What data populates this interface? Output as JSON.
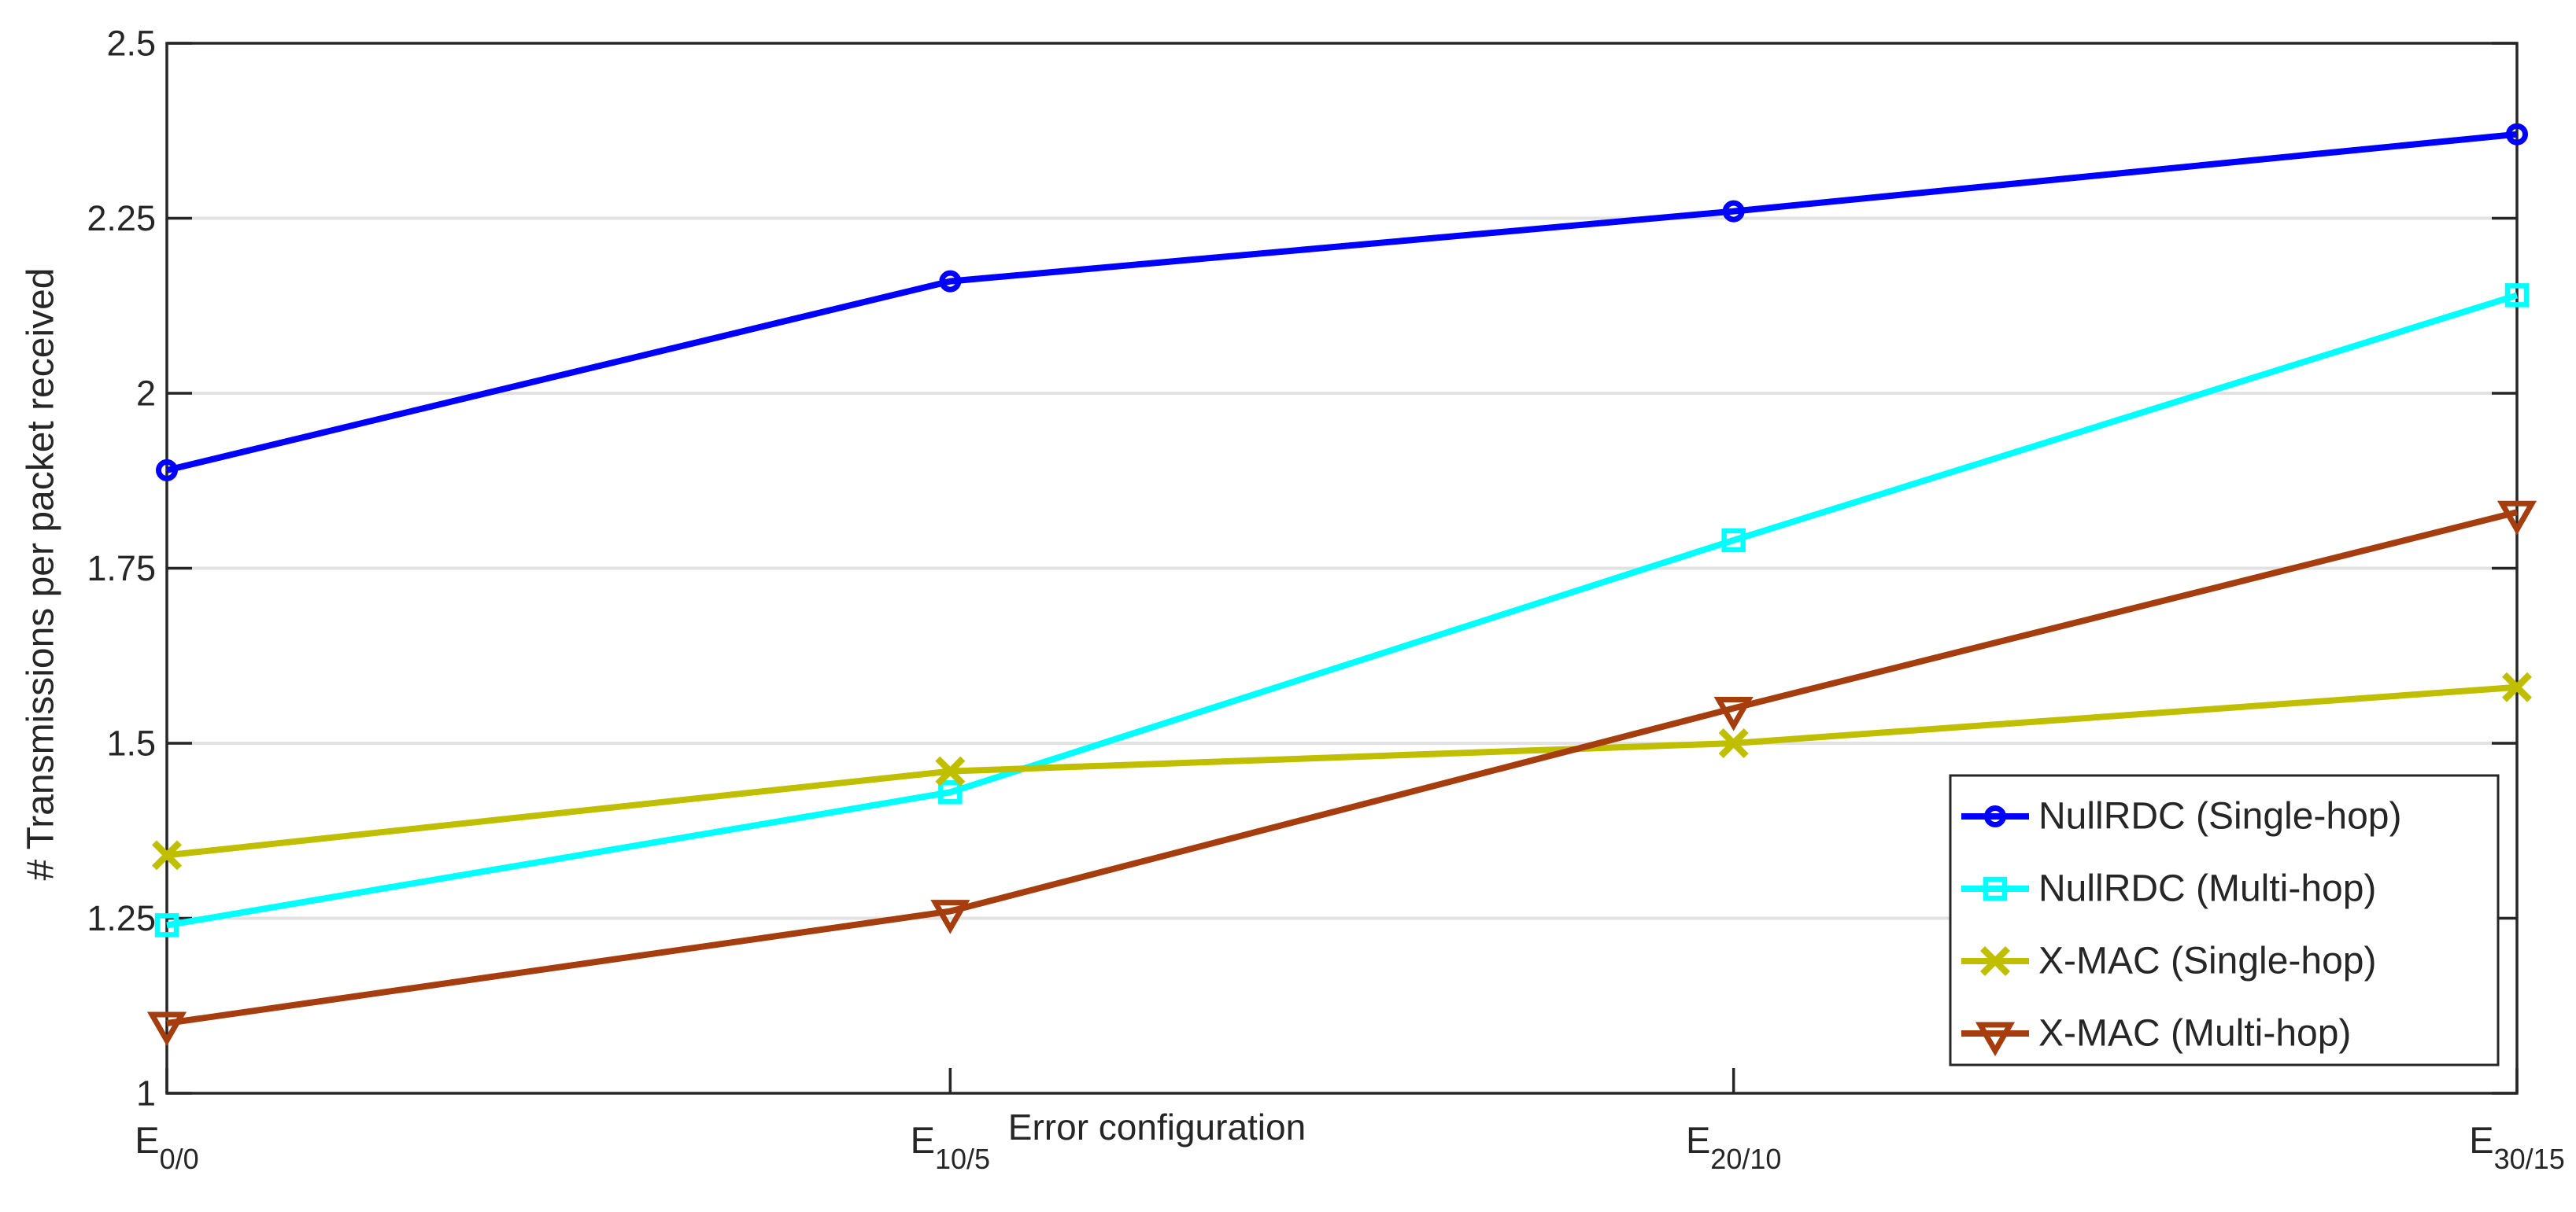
{
  "figure": {
    "background": "#FFFFFF",
    "axis_color": "#262626",
    "grid_color": "#E2E2E2",
    "text_color": "#262626"
  },
  "chart_data": {
    "type": "line",
    "title": "",
    "xlabel": "Error configuration",
    "ylabel": "# Transmissions per packet received",
    "categories": [
      "E_0/0",
      "E_10/5",
      "E_20/10",
      "E_30/15"
    ],
    "ylim": [
      1,
      2.5
    ],
    "yticks": [
      1,
      1.25,
      1.5,
      1.75,
      2,
      2.25,
      2.5
    ],
    "ytick_labels": [
      "1",
      "1.25",
      "1.5",
      "1.75",
      "2",
      "2.25",
      "2.5"
    ],
    "grid": "horizontal-only",
    "legend_position": "inside-lower-right",
    "series": [
      {
        "name": "NullRDC (Single-hop)",
        "color": "#0000FF",
        "marker": "circle",
        "values": [
          1.89,
          2.16,
          2.26,
          2.37
        ]
      },
      {
        "name": "NullRDC (Multi-hop)",
        "color": "#00FFFF",
        "marker": "square",
        "values": [
          1.24,
          1.43,
          1.79,
          2.14
        ]
      },
      {
        "name": "X-MAC (Single-hop)",
        "color": "#BFBF00",
        "marker": "x",
        "values": [
          1.34,
          1.46,
          1.5,
          1.58
        ]
      },
      {
        "name": "X-MAC (Multi-hop)",
        "color": "#A53D0E",
        "marker": "triangle-down",
        "values": [
          1.1,
          1.26,
          1.55,
          1.83
        ]
      }
    ]
  }
}
